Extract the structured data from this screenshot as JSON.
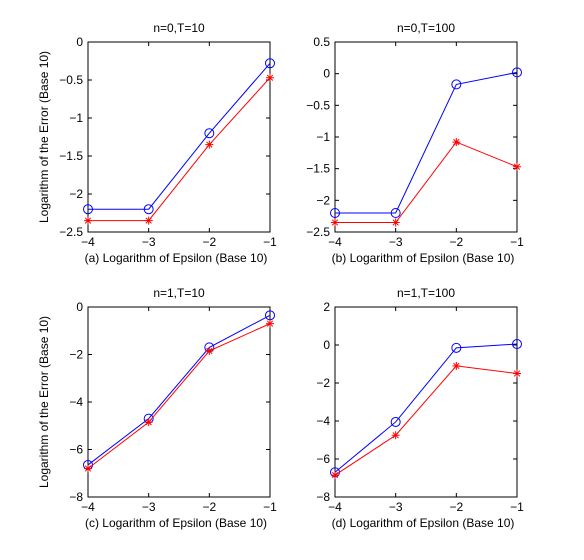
{
  "chart_data": [
    {
      "type": "line",
      "title": "n=0,T=10",
      "xlabel": "(a) Logarithm of Epsilon (Base 10)",
      "ylabel": "Logarithm of the Error (Base 10)",
      "xlim": [
        -4,
        -1
      ],
      "ylim": [
        -2.5,
        0
      ],
      "xticks": [
        -4,
        -3,
        -2,
        -1
      ],
      "yticks": [
        -2.5,
        -2,
        -1.5,
        -1,
        -0.5,
        0
      ],
      "x": [
        -4,
        -3,
        -2,
        -1
      ],
      "series": [
        {
          "marker": "circle",
          "color": "#0000ff",
          "values": [
            -2.2,
            -2.2,
            -1.2,
            -0.28
          ]
        },
        {
          "marker": "asterisk",
          "color": "#ff0000",
          "values": [
            -2.35,
            -2.35,
            -1.35,
            -0.47
          ]
        }
      ]
    },
    {
      "type": "line",
      "title": "n=0,T=100",
      "xlabel": "(b) Logarithm of Epsilon (Base 10)",
      "ylabel": "",
      "xlim": [
        -4,
        -1
      ],
      "ylim": [
        -2.5,
        0.5
      ],
      "xticks": [
        -4,
        -3,
        -2,
        -1
      ],
      "yticks": [
        -2.5,
        -2,
        -1.5,
        -1,
        -0.5,
        0,
        0.5
      ],
      "x": [
        -4,
        -3,
        -2,
        -1
      ],
      "series": [
        {
          "marker": "circle",
          "color": "#0000ff",
          "values": [
            -2.2,
            -2.2,
            -0.17,
            0.02
          ]
        },
        {
          "marker": "asterisk",
          "color": "#ff0000",
          "values": [
            -2.35,
            -2.35,
            -1.08,
            -1.47
          ]
        }
      ]
    },
    {
      "type": "line",
      "title": "n=1,T=10",
      "xlabel": "(c) Logarithm of Epsilon (Base 10)",
      "ylabel": "Logarithm of the Error (Base 10)",
      "xlim": [
        -4,
        -1
      ],
      "ylim": [
        -8,
        0
      ],
      "xticks": [
        -4,
        -3,
        -2,
        -1
      ],
      "yticks": [
        -8,
        -6,
        -4,
        -2,
        0
      ],
      "x": [
        -4,
        -3,
        -2,
        -1
      ],
      "series": [
        {
          "marker": "circle",
          "color": "#0000ff",
          "values": [
            -6.65,
            -4.7,
            -1.7,
            -0.35
          ]
        },
        {
          "marker": "asterisk",
          "color": "#ff0000",
          "values": [
            -6.8,
            -4.85,
            -1.85,
            -0.7
          ]
        }
      ]
    },
    {
      "type": "line",
      "title": "n=1,T=100",
      "xlabel": "(d) Logarithm of Epsilon (Base 10)",
      "ylabel": "",
      "xlim": [
        -4,
        -1
      ],
      "ylim": [
        -8,
        2
      ],
      "xticks": [
        -4,
        -3,
        -2,
        -1
      ],
      "yticks": [
        -8,
        -6,
        -4,
        -2,
        0,
        2
      ],
      "x": [
        -4,
        -3,
        -2,
        -1
      ],
      "series": [
        {
          "marker": "circle",
          "color": "#0000ff",
          "values": [
            -6.7,
            -4.05,
            -0.15,
            0.05
          ]
        },
        {
          "marker": "asterisk",
          "color": "#ff0000",
          "values": [
            -6.85,
            -4.75,
            -1.1,
            -1.5
          ]
        }
      ]
    }
  ]
}
